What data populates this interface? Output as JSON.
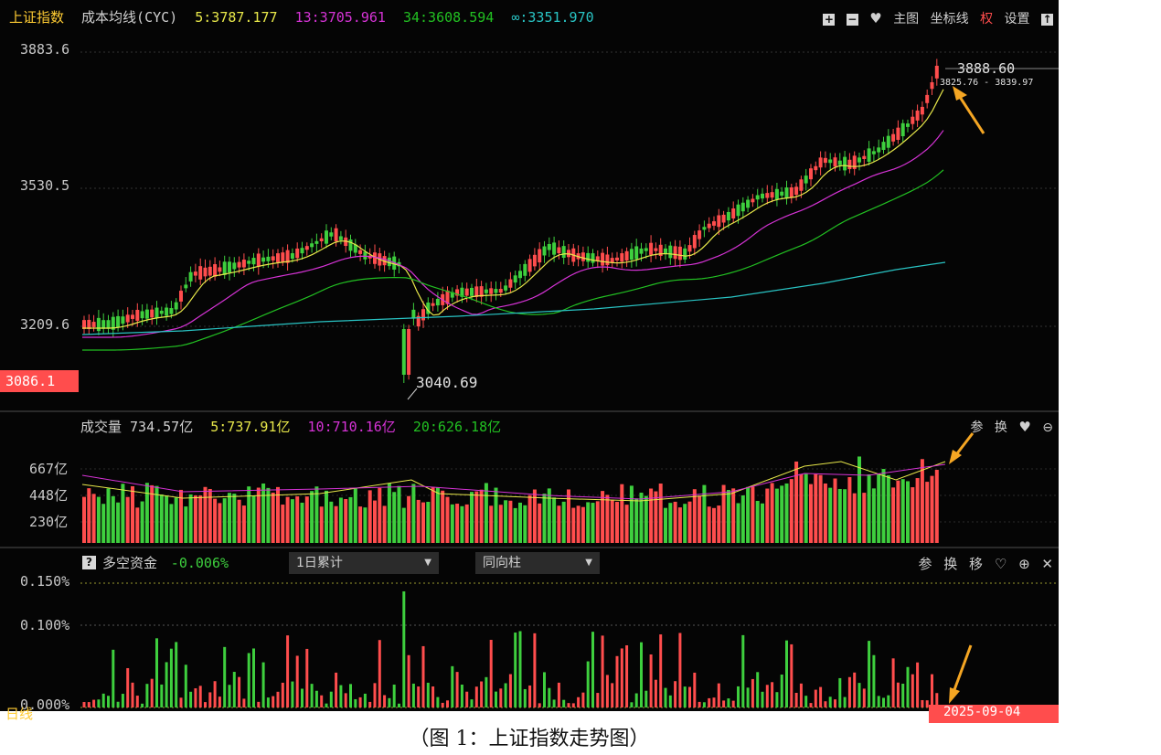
{
  "main_header": {
    "index_name": "上证指数",
    "indicator": "成本均线(CYC)",
    "ma5": "5:3787.177",
    "ma13": "13:3705.961",
    "ma34": "34:3608.594",
    "ma_inf": "∞:3351.970",
    "tools": [
      "主图",
      "坐标线",
      "权",
      "设置"
    ]
  },
  "main_chart": {
    "y_labels": [
      "3883.6",
      "3530.5",
      "3209.6"
    ],
    "current_price_tag": "3086.1",
    "high_label": "3888.60",
    "range_label": "3825.76 - 3839.97",
    "low_label": "3040.69"
  },
  "volume_header": {
    "title": "成交量 734.57亿",
    "ma5": "5:737.91亿",
    "ma10": "10:710.16亿",
    "ma20": "20:626.18亿",
    "tools": [
      "参",
      "换"
    ],
    "y_labels": [
      "667亿",
      "448亿",
      "230亿"
    ]
  },
  "fund_header": {
    "help": "?",
    "title": "多空资金",
    "value": "-0.006%",
    "dropdown1": "1日累计",
    "dropdown2": "同向柱",
    "tools": [
      "参",
      "换",
      "移"
    ],
    "y_labels": [
      "0.150%",
      "0.100%",
      "0.000%"
    ]
  },
  "bottom_axis": {
    "period": "日线",
    "date_tag": "2025-09-04"
  },
  "caption": "（图 1：上证指数走势图）",
  "colors": {
    "up": "#ff4d4d",
    "down": "#3ecf3e",
    "ma5": "#e8e84a",
    "ma13": "#d633d6",
    "ma34": "#22c022",
    "ma_inf": "#29c4c4",
    "accent": "#f5a623"
  }
}
